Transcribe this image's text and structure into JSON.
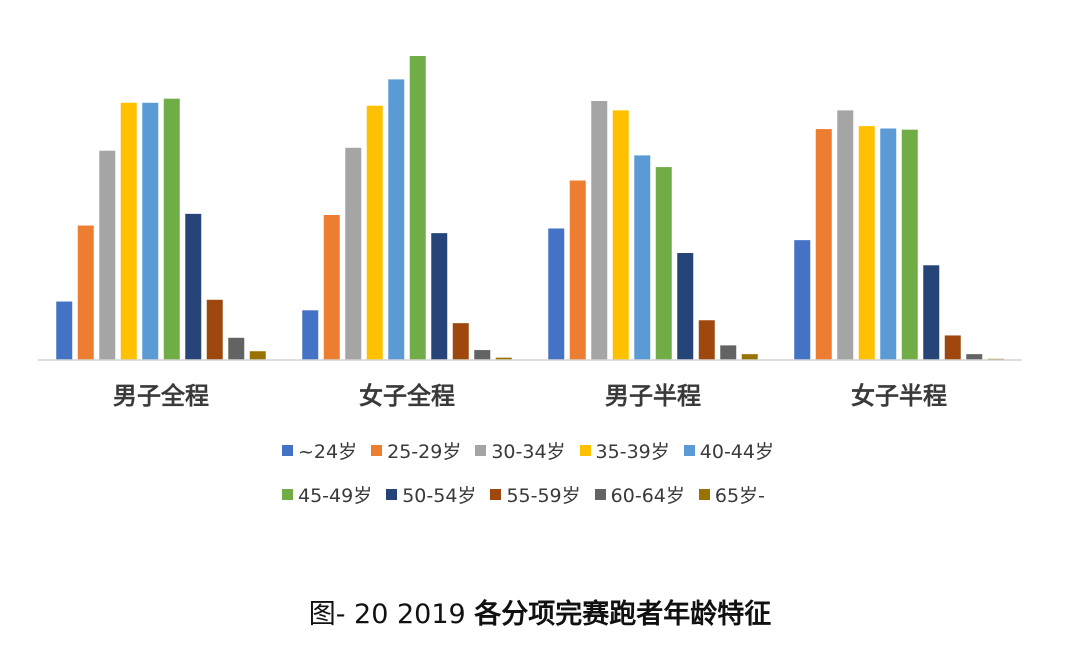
{
  "chart_data": {
    "type": "bar",
    "categories": [
      "男子全程",
      "女子全程",
      "男子半程",
      "女子半程"
    ],
    "series": [
      {
        "name": "~24岁",
        "color": "#4472c4",
        "values": [
          1.0,
          0.85,
          2.25,
          2.05
        ]
      },
      {
        "name": "25-29岁",
        "color": "#ed7d31",
        "values": [
          2.3,
          2.48,
          3.07,
          3.95
        ]
      },
      {
        "name": "30-34岁",
        "color": "#a5a5a5",
        "values": [
          3.58,
          3.63,
          4.43,
          4.27
        ]
      },
      {
        "name": "35-39岁",
        "color": "#ffc000",
        "values": [
          4.4,
          4.35,
          4.27,
          4.0
        ]
      },
      {
        "name": "40-44岁",
        "color": "#5b9bd5",
        "values": [
          4.4,
          4.8,
          3.5,
          3.96
        ]
      },
      {
        "name": "45-49岁",
        "color": "#70ad47",
        "values": [
          4.47,
          5.2,
          3.3,
          3.94
        ]
      },
      {
        "name": "50-54岁",
        "color": "#264478",
        "values": [
          2.5,
          2.17,
          1.83,
          1.62
        ]
      },
      {
        "name": "55-59岁",
        "color": "#9e480e",
        "values": [
          1.03,
          0.63,
          0.68,
          0.42
        ]
      },
      {
        "name": "60-64岁",
        "color": "#636363",
        "values": [
          0.38,
          0.17,
          0.25,
          0.1
        ]
      },
      {
        "name": "65岁-",
        "color": "#997300",
        "values": [
          0.15,
          0.04,
          0.1,
          0.02
        ]
      }
    ],
    "ylim": [
      0,
      5.2
    ],
    "grid": false,
    "legend_position": "bottom"
  },
  "caption": {
    "prefix": "图- 20 2019 ",
    "title": "各分项完赛跑者年龄特征"
  }
}
